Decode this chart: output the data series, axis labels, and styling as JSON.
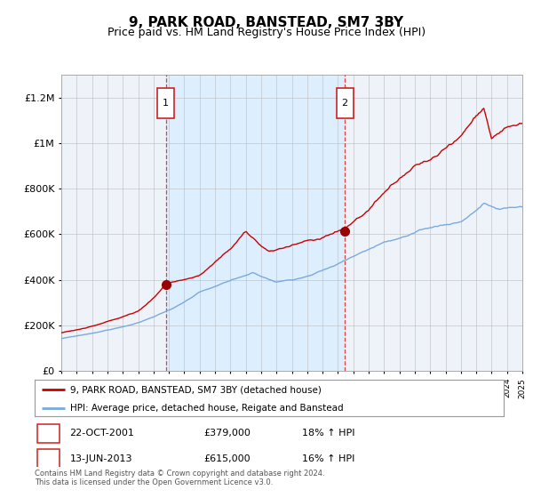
{
  "title": "9, PARK ROAD, BANSTEAD, SM7 3BY",
  "subtitle": "Price paid vs. HM Land Registry's House Price Index (HPI)",
  "title_fontsize": 11,
  "subtitle_fontsize": 9,
  "x_start_year": 1995,
  "x_end_year": 2025,
  "ylim": [
    0,
    1300000
  ],
  "yticks": [
    0,
    200000,
    400000,
    600000,
    800000,
    1000000,
    1200000
  ],
  "ytick_labels": [
    "£0",
    "£200K",
    "£400K",
    "£600K",
    "£800K",
    "£1M",
    "£1.2M"
  ],
  "purchase1_date": "22-OCT-2001",
  "purchase1_price": 379000,
  "purchase1_year": 2001.8,
  "purchase1_hpi_pct": "18%",
  "purchase2_date": "13-JUN-2013",
  "purchase2_price": 615000,
  "purchase2_year": 2013.45,
  "purchase2_hpi_pct": "16%",
  "shaded_color": "#ddeeff",
  "red_line_color": "#cc0000",
  "blue_line_color": "#7aaadd",
  "grid_color": "#bbbbbb",
  "plot_bg_color": "#eef3fa",
  "legend_line1": "9, PARK ROAD, BANSTEAD, SM7 3BY (detached house)",
  "legend_line2": "HPI: Average price, detached house, Reigate and Banstead",
  "footnote": "Contains HM Land Registry data © Crown copyright and database right 2024.\nThis data is licensed under the Open Government Licence v3.0.",
  "marker_color": "#990000",
  "marker_size": 7
}
